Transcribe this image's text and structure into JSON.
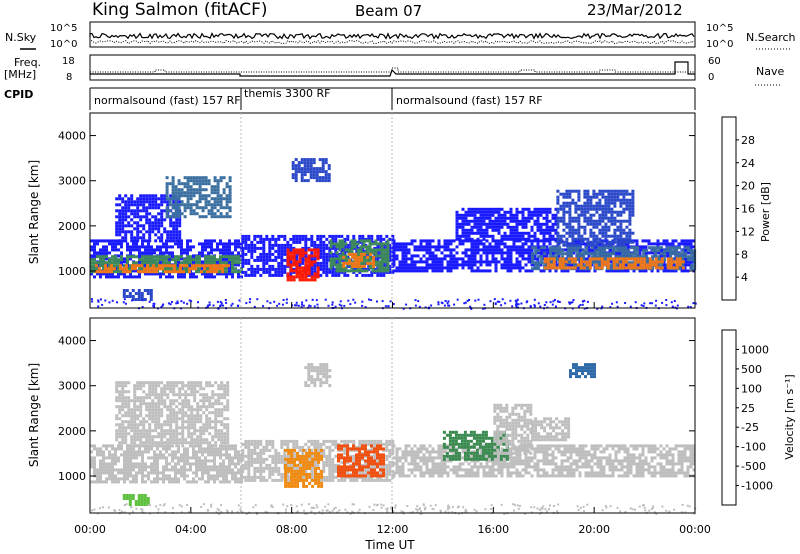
{
  "header": {
    "title": "King Salmon (fitACF)",
    "beam": "Beam 07",
    "date": "23/Mar/2012"
  },
  "status_panel": {
    "left_labels": {
      "nsky": "N.Sky",
      "freq_line1": "Freq.",
      "freq_line2": "[MHz]",
      "cpid": "CPID"
    },
    "right_labels": {
      "nsearch": "N.Search",
      "nave": "Nave"
    },
    "noise_ticks": [
      "10^5",
      "10^0"
    ],
    "freq_ticks": [
      "18",
      "8"
    ],
    "nave_ticks": [
      "60",
      "0"
    ],
    "cpid_segments": [
      {
        "label": "normalsound (fast) 157 RF",
        "start_h": 0,
        "end_h": 6
      },
      {
        "label": "themis 3300 RF",
        "start_h": 6,
        "end_h": 12
      },
      {
        "label": "normalsound (fast) 157 RF",
        "start_h": 12,
        "end_h": 24
      }
    ]
  },
  "power_colorbar": {
    "label": "Power [dB]",
    "ticks": [
      "28",
      "24",
      "20",
      "16",
      "12",
      "8",
      "4"
    ],
    "colors": [
      "#1a1aff",
      "#2a48c8",
      "#3a6fa0",
      "#3f8a5a",
      "#5fae3c",
      "#f0d020",
      "#f0a020",
      "#f07818",
      "#f04a10",
      "#ff1a00"
    ]
  },
  "velocity_colorbar": {
    "label": "Velocity [m s⁻¹]",
    "ticks": [
      "1000",
      "500",
      "100",
      "25",
      "-25",
      "-100",
      "-500",
      "-1000"
    ],
    "colors": [
      "#1a3fd0",
      "#2f6aa8",
      "#3a8a50",
      "#60c040",
      "#bebebe",
      "#f0c020",
      "#f08a10",
      "#f05010",
      "#ff1a00"
    ]
  },
  "chart_data": [
    {
      "type": "heatmap",
      "name": "power",
      "ylabel": "Slant Range [km]",
      "xlabel": "",
      "x_range_hours": [
        0,
        24
      ],
      "ylim": [
        180,
        4500
      ],
      "y_ticks": [
        "4000",
        "3000",
        "2000",
        "1000"
      ],
      "region_color_index": {
        "blue": 0,
        "steel": 1,
        "teal": 2,
        "green": 3,
        "lime": 4,
        "yellow": 5,
        "orange": 7,
        "red": 9
      },
      "regions": [
        {
          "t0": 0.0,
          "t1": 6.0,
          "r0": 900,
          "r1": 1700,
          "value": "blue"
        },
        {
          "t0": 0.0,
          "t1": 6.0,
          "r0": 1000,
          "r1": 1350,
          "value": "green"
        },
        {
          "t0": 0.2,
          "t1": 5.5,
          "r0": 1000,
          "r1": 1150,
          "value": "orange"
        },
        {
          "t0": 1.0,
          "t1": 3.5,
          "r0": 1700,
          "r1": 2700,
          "value": "blue"
        },
        {
          "t0": 3.0,
          "t1": 5.5,
          "r0": 2200,
          "r1": 3100,
          "value": "teal"
        },
        {
          "t0": 1.3,
          "t1": 2.4,
          "r0": 400,
          "r1": 600,
          "value": "steel"
        },
        {
          "t0": 6.0,
          "t1": 12.0,
          "r0": 900,
          "r1": 1800,
          "value": "blue"
        },
        {
          "t0": 7.8,
          "t1": 9.0,
          "r0": 800,
          "r1": 1500,
          "value": "red"
        },
        {
          "t0": 9.5,
          "t1": 11.8,
          "r0": 1000,
          "r1": 1700,
          "value": "green"
        },
        {
          "t0": 10.0,
          "t1": 11.3,
          "r0": 1100,
          "r1": 1400,
          "value": "orange"
        },
        {
          "t0": 8.0,
          "t1": 9.5,
          "r0": 3000,
          "r1": 3500,
          "value": "steel"
        },
        {
          "t0": 12.0,
          "t1": 24.0,
          "r0": 1000,
          "r1": 1700,
          "value": "blue"
        },
        {
          "t0": 17.5,
          "t1": 24.0,
          "r0": 1050,
          "r1": 1550,
          "value": "teal"
        },
        {
          "t0": 18.0,
          "t1": 23.5,
          "r0": 1100,
          "r1": 1300,
          "value": "orange"
        },
        {
          "t0": 14.5,
          "t1": 18.5,
          "r0": 1700,
          "r1": 2400,
          "value": "blue"
        },
        {
          "t0": 18.5,
          "t1": 21.5,
          "r0": 1600,
          "r1": 2800,
          "value": "steel"
        }
      ]
    },
    {
      "type": "heatmap",
      "name": "velocity",
      "ylabel": "Slant Range [km]",
      "xlabel": "Time UT",
      "x_range_hours": [
        0,
        24
      ],
      "x_ticks": [
        "00:00",
        "04:00",
        "08:00",
        "12:00",
        "16:00",
        "20:00",
        "00:00"
      ],
      "ylim": [
        180,
        4500
      ],
      "y_ticks": [
        "4000",
        "3000",
        "2000",
        "1000"
      ],
      "region_color_index": {
        "grey": 4,
        "lime": 3,
        "green": 2,
        "teal": 1,
        "yellow": 5,
        "orange": 6,
        "darkorange": 7
      },
      "regions": [
        {
          "t0": 0.0,
          "t1": 6.0,
          "r0": 900,
          "r1": 1700,
          "value": "grey"
        },
        {
          "t0": 1.0,
          "t1": 5.5,
          "r0": 1700,
          "r1": 3100,
          "value": "grey"
        },
        {
          "t0": 1.3,
          "t1": 2.3,
          "r0": 400,
          "r1": 600,
          "value": "lime"
        },
        {
          "t0": 6.0,
          "t1": 12.0,
          "r0": 900,
          "r1": 1800,
          "value": "grey"
        },
        {
          "t0": 7.7,
          "t1": 9.2,
          "r0": 800,
          "r1": 1600,
          "value": "orange"
        },
        {
          "t0": 9.8,
          "t1": 11.7,
          "r0": 1000,
          "r1": 1700,
          "value": "darkorange"
        },
        {
          "t0": 8.5,
          "t1": 9.5,
          "r0": 3000,
          "r1": 3500,
          "value": "grey"
        },
        {
          "t0": 12.0,
          "t1": 24.0,
          "r0": 1000,
          "r1": 1700,
          "value": "grey"
        },
        {
          "t0": 14.0,
          "t1": 16.5,
          "r0": 1400,
          "r1": 2000,
          "value": "green"
        },
        {
          "t0": 16.0,
          "t1": 17.5,
          "r0": 1500,
          "r1": 2600,
          "value": "grey"
        },
        {
          "t0": 17.5,
          "t1": 19.0,
          "r0": 1800,
          "r1": 2300,
          "value": "grey"
        },
        {
          "t0": 19.0,
          "t1": 20.0,
          "r0": 3200,
          "r1": 3500,
          "value": "teal"
        }
      ]
    }
  ]
}
